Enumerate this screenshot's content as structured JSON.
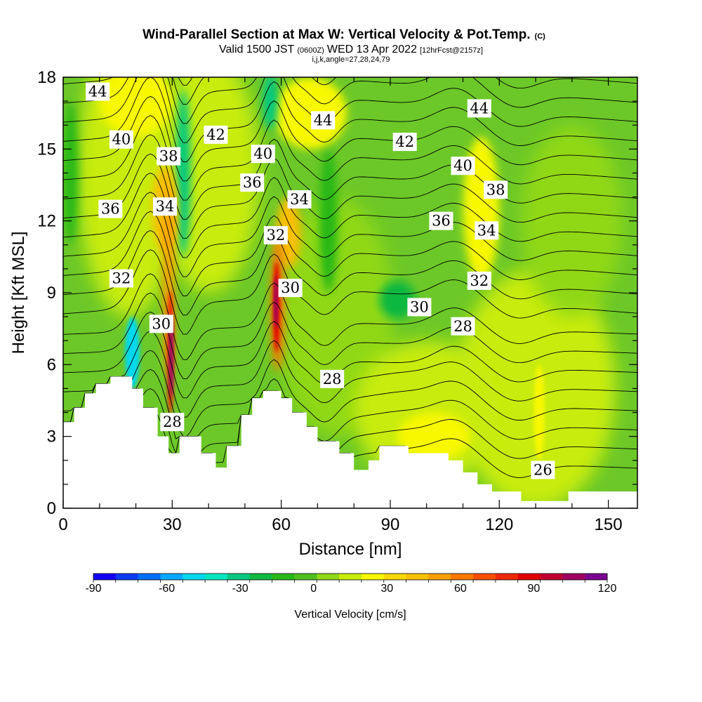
{
  "title": {
    "main": "Wind-Parallel Section at Max W: Vertical Velocity & Pot.Temp.",
    "main_suffix": "(C)",
    "valid_prefix": "Valid 1500 JST",
    "valid_z": "(0600Z)",
    "valid_date": "WED 13 Apr 2022",
    "fcst": "[12hrFcst@2157z]",
    "indices": "i,j,k,angle=27,28,24,79"
  },
  "chart_data": {
    "type": "heatmap",
    "xlabel": "Distance [nm]",
    "ylabel": "Height [Kft MSL]",
    "xlim": [
      0,
      158
    ],
    "ylim": [
      0,
      18
    ],
    "x_ticks": [
      0,
      30,
      60,
      90,
      120,
      150
    ],
    "y_ticks": [
      0,
      3,
      6,
      9,
      12,
      15,
      18
    ],
    "colorbar": {
      "label": "Vertical Velocity [cm/s]",
      "range": [
        -90,
        120
      ],
      "step": 10,
      "tick_values": [
        -90,
        -60,
        -30,
        0,
        30,
        60,
        90,
        120
      ],
      "colors": [
        "#1400f5",
        "#0a3cf2",
        "#0070ff",
        "#00a8ff",
        "#00d8ee",
        "#00e8c0",
        "#00c880",
        "#10b840",
        "#28b818",
        "#50c020",
        "#90d818",
        "#c8ec08",
        "#f8f800",
        "#f8d800",
        "#f8c000",
        "#f8a000",
        "#f87800",
        "#f85000",
        "#f02800",
        "#e00000",
        "#c00030",
        "#a00060",
        "#7a0090"
      ]
    },
    "theta_contours": {
      "variable": "Potential Temperature (C)",
      "interval": 1,
      "labeled_levels": [
        26,
        28,
        30,
        32,
        34,
        36,
        38,
        40,
        42,
        44
      ]
    },
    "contour_labels": [
      {
        "text": "44",
        "x": 9.5,
        "y": 17.4
      },
      {
        "text": "40",
        "x": 16,
        "y": 15.4
      },
      {
        "text": "38",
        "x": 29,
        "y": 14.7
      },
      {
        "text": "42",
        "x": 42,
        "y": 15.6
      },
      {
        "text": "40",
        "x": 55,
        "y": 14.8
      },
      {
        "text": "44",
        "x": 71.5,
        "y": 16.2
      },
      {
        "text": "42",
        "x": 94,
        "y": 15.3
      },
      {
        "text": "44",
        "x": 114.5,
        "y": 16.7
      },
      {
        "text": "40",
        "x": 110,
        "y": 14.3
      },
      {
        "text": "38",
        "x": 119,
        "y": 13.3
      },
      {
        "text": "36",
        "x": 13,
        "y": 12.5
      },
      {
        "text": "34",
        "x": 28,
        "y": 12.6
      },
      {
        "text": "36",
        "x": 52,
        "y": 13.6
      },
      {
        "text": "34",
        "x": 65,
        "y": 12.9
      },
      {
        "text": "36",
        "x": 104,
        "y": 12.0
      },
      {
        "text": "34",
        "x": 116.5,
        "y": 11.6
      },
      {
        "text": "32",
        "x": 58.5,
        "y": 11.4
      },
      {
        "text": "32",
        "x": 16,
        "y": 9.6
      },
      {
        "text": "30",
        "x": 62.5,
        "y": 9.2
      },
      {
        "text": "32",
        "x": 114.5,
        "y": 9.5
      },
      {
        "text": "30",
        "x": 98,
        "y": 8.4
      },
      {
        "text": "28",
        "x": 110,
        "y": 7.6
      },
      {
        "text": "30",
        "x": 27,
        "y": 7.7
      },
      {
        "text": "28",
        "x": 74,
        "y": 5.4
      },
      {
        "text": "28",
        "x": 30,
        "y": 3.6
      },
      {
        "text": "26",
        "x": 132,
        "y": 1.6
      }
    ],
    "terrain_profile": [
      {
        "x": 0,
        "y": 3.6
      },
      {
        "x": 3,
        "y": 4.2
      },
      {
        "x": 6,
        "y": 4.8
      },
      {
        "x": 9,
        "y": 5.2
      },
      {
        "x": 13,
        "y": 5.5
      },
      {
        "x": 19,
        "y": 5.0
      },
      {
        "x": 22,
        "y": 4.2
      },
      {
        "x": 26,
        "y": 3.0
      },
      {
        "x": 29,
        "y": 2.3
      },
      {
        "x": 32,
        "y": 3.0
      },
      {
        "x": 38,
        "y": 2.3
      },
      {
        "x": 42,
        "y": 1.7
      },
      {
        "x": 45,
        "y": 2.6
      },
      {
        "x": 49,
        "y": 3.9
      },
      {
        "x": 52,
        "y": 4.6
      },
      {
        "x": 55,
        "y": 4.9
      },
      {
        "x": 60,
        "y": 4.6
      },
      {
        "x": 63,
        "y": 4.0
      },
      {
        "x": 67,
        "y": 3.4
      },
      {
        "x": 70,
        "y": 2.8
      },
      {
        "x": 76,
        "y": 2.3
      },
      {
        "x": 80,
        "y": 1.6
      },
      {
        "x": 84,
        "y": 2.0
      },
      {
        "x": 87,
        "y": 2.6
      },
      {
        "x": 95,
        "y": 2.3
      },
      {
        "x": 106,
        "y": 2.0
      },
      {
        "x": 110,
        "y": 1.5
      },
      {
        "x": 114,
        "y": 1.0
      },
      {
        "x": 118,
        "y": 0.7
      },
      {
        "x": 126,
        "y": 0.3
      },
      {
        "x": 139,
        "y": 0.7
      },
      {
        "x": 158,
        "y": 0.7
      }
    ]
  }
}
